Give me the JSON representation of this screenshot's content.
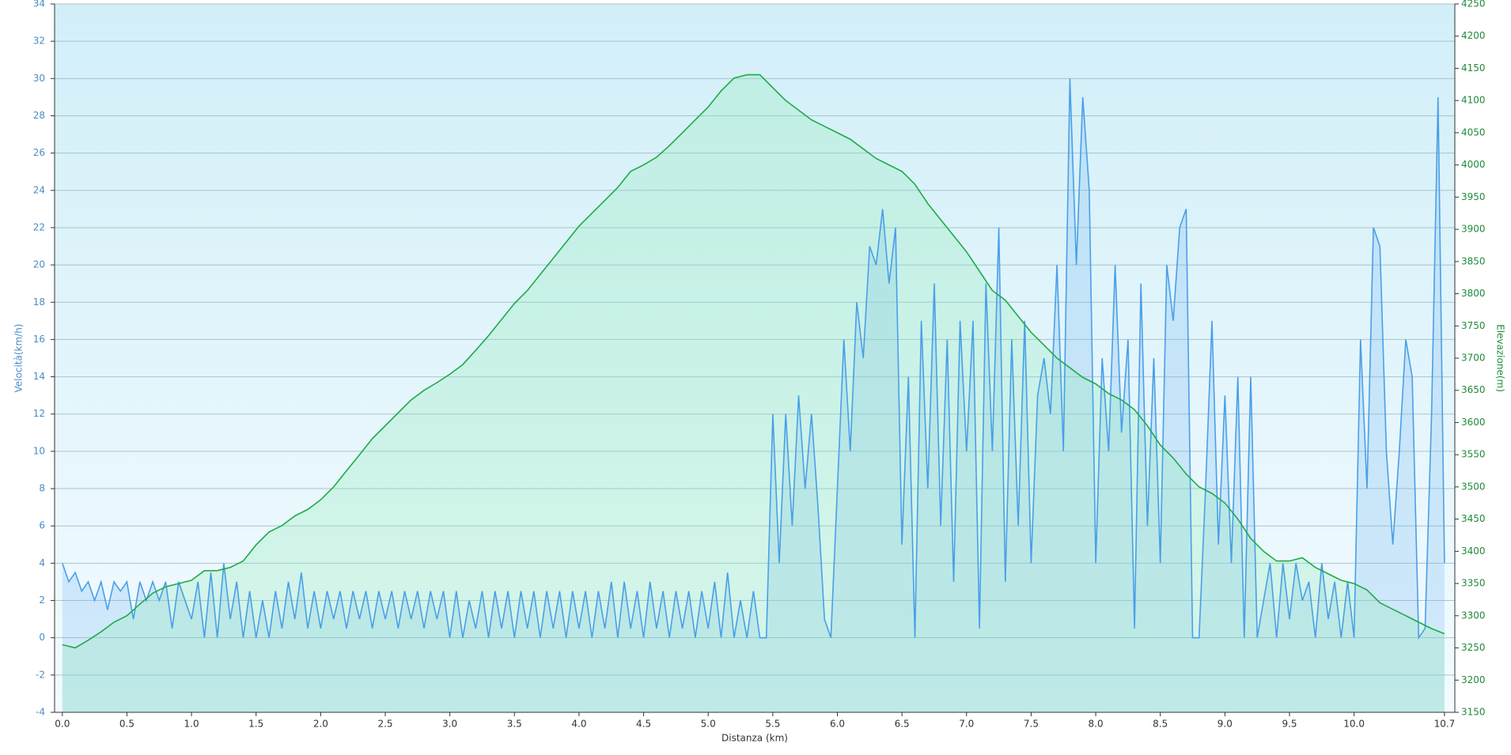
{
  "chart_data": {
    "type": "line",
    "xlabel": "Distanza  (km)",
    "ylabel": "Velocità(km/h)",
    "y2label": "Elevazione(m)",
    "xlim": [
      -0.06,
      10.78
    ],
    "ylim": [
      -4,
      34
    ],
    "y2lim": [
      3150,
      4250
    ],
    "xticks": [
      {
        "value": 0,
        "label": "0.0"
      },
      0.5,
      {
        "value": 1,
        "label": "1.0"
      },
      1.5,
      {
        "value": 2,
        "label": "2.0"
      },
      2.5,
      {
        "value": 3,
        "label": "3.0"
      },
      3.5,
      {
        "value": 4,
        "label": "4.0"
      },
      4.5,
      {
        "value": 5,
        "label": "5.0"
      },
      5.5,
      {
        "value": 6,
        "label": "6.0"
      },
      6.5,
      {
        "value": 7,
        "label": "7.0"
      },
      7.5,
      {
        "value": 8,
        "label": "8.0"
      },
      8.5,
      {
        "value": 9,
        "label": "9.0"
      },
      9.5,
      {
        "value": 10,
        "label": "10.0"
      },
      10.7
    ],
    "yticks": [
      -4,
      -2,
      0,
      2,
      4,
      6,
      8,
      10,
      12,
      14,
      16,
      18,
      20,
      22,
      24,
      26,
      28,
      30,
      32,
      34
    ],
    "y2ticks": [
      3150,
      3200,
      3250,
      3300,
      3350,
      3400,
      3450,
      3500,
      3550,
      3600,
      3650,
      3700,
      3750,
      3800,
      3850,
      3900,
      3950,
      4000,
      4050,
      4100,
      4150,
      4200,
      4250
    ],
    "grid": true,
    "series": [
      {
        "color": "#4a9fe8",
        "axis": "y",
        "x": [
          0,
          0.05,
          0.1,
          0.15,
          0.2,
          0.25,
          0.3,
          0.35,
          0.4,
          0.45,
          0.5,
          0.55,
          0.6,
          0.65,
          0.7,
          0.75,
          0.8,
          0.85,
          0.9,
          0.95,
          1,
          1.05,
          1.1,
          1.15,
          1.2,
          1.25,
          1.3,
          1.35,
          1.4,
          1.45,
          1.5,
          1.55,
          1.6,
          1.65,
          1.7,
          1.75,
          1.8,
          1.85,
          1.9,
          1.95,
          2,
          2.05,
          2.1,
          2.15,
          2.2,
          2.25,
          2.3,
          2.35,
          2.4,
          2.45,
          2.5,
          2.55,
          2.6,
          2.65,
          2.7,
          2.75,
          2.8,
          2.85,
          2.9,
          2.95,
          3,
          3.05,
          3.1,
          3.15,
          3.2,
          3.25,
          3.3,
          3.35,
          3.4,
          3.45,
          3.5,
          3.55,
          3.6,
          3.65,
          3.7,
          3.75,
          3.8,
          3.85,
          3.9,
          3.95,
          4,
          4.05,
          4.1,
          4.15,
          4.2,
          4.25,
          4.3,
          4.35,
          4.4,
          4.45,
          4.5,
          4.55,
          4.6,
          4.65,
          4.7,
          4.75,
          4.8,
          4.85,
          4.9,
          4.95,
          5,
          5.05,
          5.1,
          5.15,
          5.2,
          5.25,
          5.3,
          5.35,
          5.4,
          5.45,
          5.5,
          5.55,
          5.6,
          5.65,
          5.7,
          5.75,
          5.8,
          5.85,
          5.9,
          5.95,
          6,
          6.05,
          6.1,
          6.15,
          6.2,
          6.25,
          6.3,
          6.35,
          6.4,
          6.45,
          6.5,
          6.55,
          6.6,
          6.65,
          6.7,
          6.75,
          6.8,
          6.85,
          6.9,
          6.95,
          7,
          7.05,
          7.1,
          7.15,
          7.2,
          7.25,
          7.3,
          7.35,
          7.4,
          7.45,
          7.5,
          7.55,
          7.6,
          7.65,
          7.7,
          7.75,
          7.8,
          7.85,
          7.9,
          7.95,
          8,
          8.05,
          8.1,
          8.15,
          8.2,
          8.25,
          8.3,
          8.35,
          8.4,
          8.45,
          8.5,
          8.55,
          8.6,
          8.65,
          8.7,
          8.75,
          8.8,
          8.85,
          8.9,
          8.95,
          9,
          9.05,
          9.1,
          9.15,
          9.2,
          9.25,
          9.3,
          9.35,
          9.4,
          9.45,
          9.5,
          9.55,
          9.6,
          9.65,
          9.7,
          9.75,
          9.8,
          9.85,
          9.9,
          9.95,
          10,
          10.05,
          10.1,
          10.15,
          10.2,
          10.25,
          10.3,
          10.35,
          10.4,
          10.45,
          10.5,
          10.55,
          10.6,
          10.65,
          10.7
        ],
        "values": [
          4,
          3,
          3.5,
          2.5,
          3,
          2,
          3,
          1.5,
          3,
          2.5,
          3,
          1,
          3,
          2,
          3,
          2,
          3,
          0.5,
          3,
          2,
          1,
          3,
          0,
          3.5,
          0,
          4,
          1,
          3,
          0,
          2.5,
          0,
          2,
          0,
          2.5,
          0.5,
          3,
          1,
          3.5,
          0.5,
          2.5,
          0.5,
          2.5,
          1,
          2.5,
          0.5,
          2.5,
          1,
          2.5,
          0.5,
          2.5,
          1,
          2.5,
          0.5,
          2.5,
          1,
          2.5,
          0.5,
          2.5,
          1,
          2.5,
          0,
          2.5,
          0,
          2,
          0.5,
          2.5,
          0,
          2.5,
          0.5,
          2.5,
          0,
          2.5,
          0.5,
          2.5,
          0,
          2.5,
          0.5,
          2.5,
          0,
          2.5,
          0.5,
          2.5,
          0,
          2.5,
          0.5,
          3,
          0,
          3,
          0.5,
          2.5,
          0,
          3,
          0.5,
          2.5,
          0,
          2.5,
          0.5,
          2.5,
          0,
          2.5,
          0.5,
          3,
          0,
          3.5,
          0,
          2,
          0,
          2.5,
          0,
          0,
          12,
          4,
          12,
          6,
          13,
          8,
          12,
          7,
          1,
          0,
          8,
          16,
          10,
          18,
          15,
          21,
          20,
          23,
          19,
          22,
          5,
          14,
          0,
          17,
          8,
          19,
          6,
          16,
          3,
          17,
          10,
          17,
          0.5,
          19,
          10,
          22,
          3,
          16,
          6,
          17,
          4,
          13,
          15,
          12,
          20,
          10,
          30,
          20,
          29,
          24,
          4,
          15,
          10,
          20,
          11,
          16,
          0.5,
          19,
          6,
          15,
          4,
          20,
          17,
          22,
          23,
          0,
          0,
          8,
          17,
          5,
          13,
          4,
          14,
          0,
          14,
          0,
          2,
          4,
          0,
          4,
          1,
          4,
          2,
          3,
          0,
          4,
          1,
          3,
          0,
          3,
          0,
          16,
          8,
          22,
          21,
          10,
          5,
          10,
          16,
          14,
          0,
          0.5,
          12,
          29,
          4
        ]
      },
      {
        "color": "#1faa48",
        "axis": "y2",
        "x": [
          0,
          0.1,
          0.2,
          0.3,
          0.4,
          0.5,
          0.6,
          0.7,
          0.8,
          0.9,
          1,
          1.1,
          1.2,
          1.3,
          1.4,
          1.5,
          1.6,
          1.7,
          1.8,
          1.9,
          2,
          2.1,
          2.2,
          2.3,
          2.4,
          2.5,
          2.6,
          2.7,
          2.8,
          2.9,
          3,
          3.1,
          3.2,
          3.3,
          3.4,
          3.5,
          3.6,
          3.7,
          3.8,
          3.9,
          4,
          4.1,
          4.2,
          4.3,
          4.4,
          4.5,
          4.6,
          4.7,
          4.8,
          4.9,
          5,
          5.1,
          5.2,
          5.3,
          5.4,
          5.5,
          5.6,
          5.7,
          5.8,
          5.9,
          6,
          6.1,
          6.2,
          6.3,
          6.4,
          6.5,
          6.6,
          6.7,
          6.8,
          6.9,
          7,
          7.1,
          7.2,
          7.3,
          7.4,
          7.5,
          7.6,
          7.7,
          7.8,
          7.9,
          8,
          8.1,
          8.2,
          8.3,
          8.4,
          8.5,
          8.6,
          8.7,
          8.8,
          8.9,
          9,
          9.1,
          9.2,
          9.3,
          9.4,
          9.5,
          9.6,
          9.7,
          9.8,
          9.9,
          10,
          10.1,
          10.2,
          10.3,
          10.4,
          10.5,
          10.6,
          10.7
        ],
        "values": [
          3255,
          3250,
          3262,
          3275,
          3290,
          3300,
          3318,
          3335,
          3345,
          3350,
          3355,
          3370,
          3370,
          3375,
          3385,
          3410,
          3430,
          3440,
          3455,
          3465,
          3480,
          3500,
          3525,
          3550,
          3575,
          3595,
          3615,
          3635,
          3650,
          3662,
          3675,
          3690,
          3712,
          3735,
          3760,
          3785,
          3805,
          3830,
          3855,
          3880,
          3905,
          3925,
          3945,
          3965,
          3990,
          4000,
          4012,
          4030,
          4050,
          4070,
          4090,
          4115,
          4135,
          4140,
          4140,
          4120,
          4100,
          4085,
          4070,
          4060,
          4050,
          4040,
          4025,
          4010,
          4000,
          3990,
          3970,
          3940,
          3915,
          3890,
          3865,
          3835,
          3805,
          3790,
          3765,
          3740,
          3720,
          3700,
          3685,
          3670,
          3660,
          3645,
          3635,
          3620,
          3595,
          3565,
          3545,
          3520,
          3500,
          3490,
          3475,
          3450,
          3420,
          3400,
          3385,
          3385,
          3390,
          3375,
          3365,
          3355,
          3350,
          3340,
          3320,
          3310,
          3300,
          3290,
          3280,
          3272
        ]
      }
    ]
  }
}
